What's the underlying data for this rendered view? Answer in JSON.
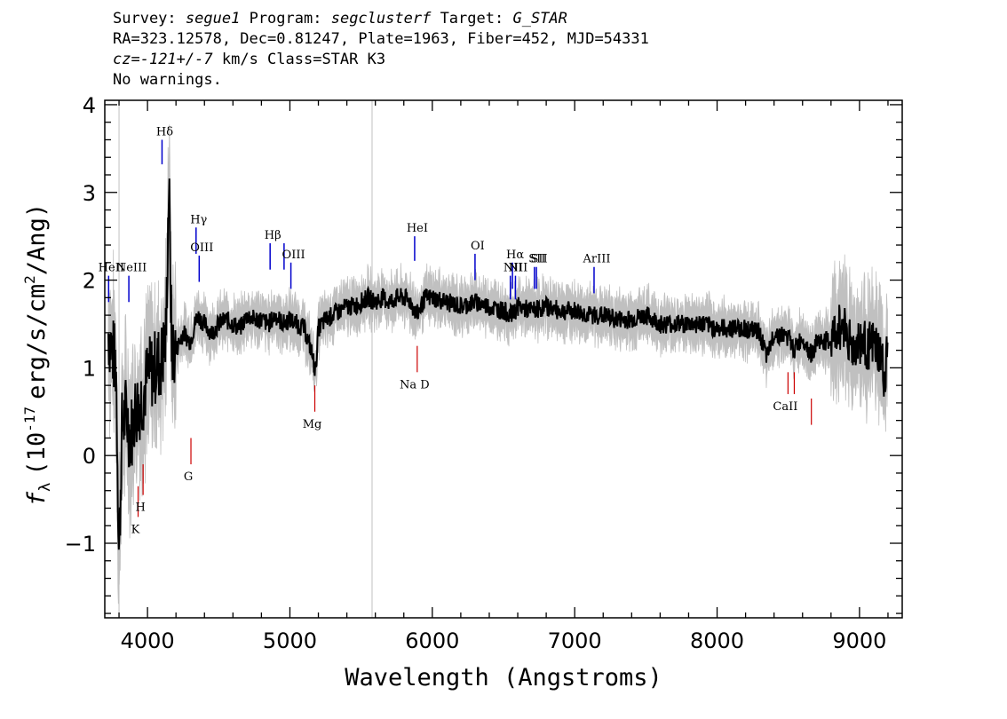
{
  "header": {
    "survey_label": "Survey:",
    "survey": "segue1",
    "program_label": "Program:",
    "program": "segclusterf",
    "target_label": "Target:",
    "target": "G_STAR",
    "coords": "RA=323.12578, Dec=0.81247, Plate=1963, Fiber=452, MJD=54331",
    "cz_label": "cz=",
    "cz_value": "-121+/-7",
    "cz_units": "km/s Class=STAR K3",
    "warnings": "No warnings."
  },
  "chart_data": {
    "type": "line",
    "xlabel": "Wavelength (Angstroms)",
    "ylabel": "f",
    "ylabel_sub": "λ",
    "ylabel_units": "(10",
    "ylabel_exp": "-17",
    "ylabel_rest": "erg/s/cm",
    "ylabel_exp2": "2",
    "ylabel_tail": "/Ang)",
    "xlim": [
      3700,
      9300
    ],
    "ylim": [
      -1.85,
      4.05
    ],
    "x_ticks": [
      4000,
      5000,
      6000,
      7000,
      8000,
      9000
    ],
    "x_tick_labels": [
      "4000",
      "5000",
      "6000",
      "7000",
      "8000",
      "9000"
    ],
    "y_ticks": [
      -1,
      0,
      1,
      2,
      3,
      4
    ],
    "y_tick_labels": [
      "−1",
      "0",
      "1",
      "2",
      "3",
      "4"
    ],
    "vertical_reference_lines": [
      3800,
      5577
    ],
    "colors": {
      "flux": "#000000",
      "error": "#c0c0c0",
      "emission": "#0000cc",
      "absorption": "#cc0000",
      "reference": "#c0c0c0"
    },
    "series": [
      {
        "name": "",
        "x": [
          3725,
          3780,
          3800,
          3820,
          3850,
          3880,
          3910,
          3940,
          3970,
          4000,
          4050,
          4100,
          4130,
          4150,
          4170,
          4200,
          4250,
          4300,
          4350,
          4400,
          4450,
          4500,
          4550,
          4600,
          4650,
          4700,
          4750,
          4800,
          4850,
          4900,
          4950,
          5000,
          5050,
          5100,
          5150,
          5180,
          5200,
          5250,
          5300,
          5350,
          5400,
          5450,
          5500,
          5550,
          5600,
          5650,
          5700,
          5750,
          5800,
          5850,
          5890,
          5950,
          6000,
          6100,
          6200,
          6300,
          6400,
          6500,
          6563,
          6600,
          6700,
          6800,
          6900,
          7000,
          7100,
          7200,
          7300,
          7400,
          7500,
          7600,
          7700,
          7800,
          7900,
          8000,
          8100,
          8200,
          8300,
          8350,
          8400,
          8500,
          8540,
          8600,
          8662,
          8700,
          8800,
          8850,
          8900,
          8950,
          9000,
          9050,
          9100,
          9150,
          9180,
          9200
        ],
        "y": [
          1.4,
          1.0,
          -1.2,
          0.3,
          0.5,
          0.2,
          0.5,
          0.6,
          0.7,
          0.9,
          1.0,
          1.1,
          1.35,
          3.15,
          1.2,
          1.2,
          1.4,
          1.3,
          1.6,
          1.5,
          1.4,
          1.5,
          1.55,
          1.5,
          1.45,
          1.6,
          1.55,
          1.55,
          1.5,
          1.6,
          1.5,
          1.55,
          1.5,
          1.45,
          1.2,
          0.95,
          1.45,
          1.55,
          1.6,
          1.65,
          1.7,
          1.7,
          1.75,
          1.8,
          1.75,
          1.8,
          1.75,
          1.8,
          1.8,
          1.75,
          1.6,
          1.8,
          1.8,
          1.75,
          1.7,
          1.75,
          1.7,
          1.65,
          1.6,
          1.7,
          1.65,
          1.7,
          1.65,
          1.65,
          1.6,
          1.6,
          1.55,
          1.55,
          1.6,
          1.5,
          1.5,
          1.5,
          1.5,
          1.45,
          1.45,
          1.45,
          1.4,
          1.1,
          1.4,
          1.35,
          1.2,
          1.35,
          1.15,
          1.3,
          1.3,
          1.45,
          1.5,
          1.2,
          1.3,
          1.25,
          1.25,
          1.15,
          0.8,
          1.35
        ]
      }
    ],
    "emission_lines": [
      {
        "label": "HeII",
        "x": 3727,
        "y0": 1.75,
        "y1": 2.05
      },
      {
        "label": "NeIII",
        "x": 3869,
        "y0": 1.75,
        "y1": 2.05
      },
      {
        "label": "Hδ",
        "x": 4102,
        "y0": 3.32,
        "y1": 3.6
      },
      {
        "label": "Hγ",
        "x": 4341,
        "y0": 2.3,
        "y1": 2.6
      },
      {
        "label": "OIII",
        "x": 4363,
        "y0": 1.98,
        "y1": 2.28
      },
      {
        "label": "Hβ",
        "x": 4861,
        "y0": 2.12,
        "y1": 2.42
      },
      {
        "label": "",
        "x": 4959,
        "y0": 2.12,
        "y1": 2.42
      },
      {
        "label": "OIII",
        "x": 5007,
        "y0": 1.9,
        "y1": 2.2
      },
      {
        "label": "HeI",
        "x": 5876,
        "y0": 2.22,
        "y1": 2.5
      },
      {
        "label": "OI",
        "x": 6300,
        "y0": 2.0,
        "y1": 2.3
      },
      {
        "label": "NII",
        "x": 6548,
        "y0": 1.78,
        "y1": 2.05
      },
      {
        "label": "Hα",
        "x": 6563,
        "y0": 1.9,
        "y1": 2.2
      },
      {
        "label": "NII",
        "x": 6584,
        "y0": 1.78,
        "y1": 2.05
      },
      {
        "label": "SII",
        "x": 6717,
        "y0": 1.9,
        "y1": 2.15
      },
      {
        "label": "SII",
        "x": 6731,
        "y0": 1.9,
        "y1": 2.15
      },
      {
        "label": "ArIII",
        "x": 7136,
        "y0": 1.85,
        "y1": 2.15
      }
    ],
    "absorption_lines": [
      {
        "label": "K",
        "x": 3934,
        "y0": -0.7,
        "y1": -0.35
      },
      {
        "label": "H",
        "x": 3969,
        "y0": -0.45,
        "y1": -0.1
      },
      {
        "label": "G",
        "x": 4305,
        "y0": -0.1,
        "y1": 0.2
      },
      {
        "label": "Mg",
        "x": 5175,
        "y0": 0.5,
        "y1": 0.8
      },
      {
        "label": "Na D",
        "x": 5894,
        "y0": 0.95,
        "y1": 1.25
      },
      {
        "label": "CaII",
        "x": 8498,
        "y0": 0.7,
        "y1": 0.95
      },
      {
        "label": "",
        "x": 8542,
        "y0": 0.7,
        "y1": 0.95
      },
      {
        "label": "",
        "x": 8662,
        "y0": 0.35,
        "y1": 0.65
      }
    ]
  }
}
